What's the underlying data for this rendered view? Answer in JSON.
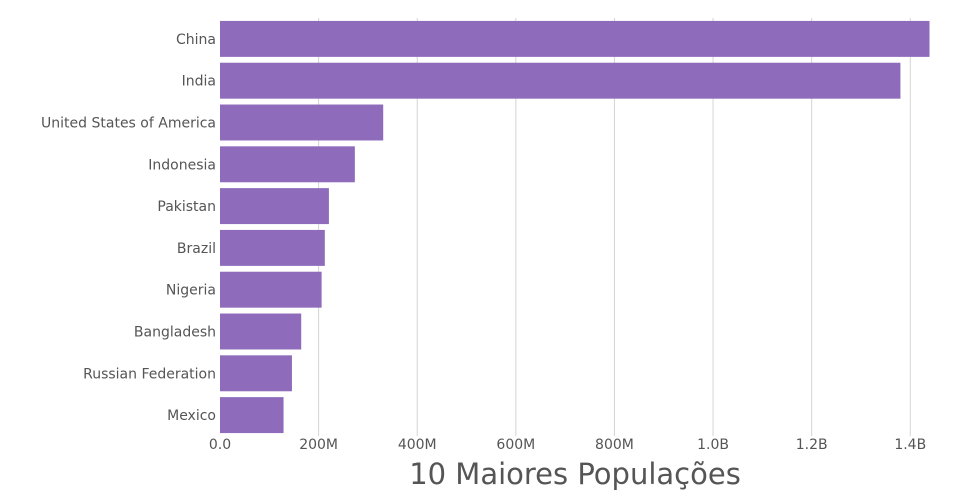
{
  "colors": {
    "bar": "#8e6cbb",
    "grid": "#d4d4d4",
    "text": "#555555"
  },
  "chart_data": {
    "type": "bar",
    "orientation": "horizontal",
    "title": "",
    "xlabel": "10 Maiores Populações",
    "ylabel": "",
    "categories": [
      "China",
      "India",
      "United States of America",
      "Indonesia",
      "Pakistan",
      "Brazil",
      "Nigeria",
      "Bangladesh",
      "Russian Federation",
      "Mexico"
    ],
    "values": [
      1439000000,
      1380000000,
      331000000,
      273500000,
      220900000,
      212600000,
      206100000,
      164700000,
      145900000,
      128900000
    ],
    "xlim": [
      0,
      1440000000
    ],
    "x_ticks": [
      0,
      200000000,
      400000000,
      600000000,
      800000000,
      1000000000,
      1200000000,
      1400000000
    ],
    "x_tick_labels": [
      "0.0",
      "200M",
      "400M",
      "600M",
      "800M",
      "1.0B",
      "1.2B",
      "1.4B"
    ],
    "grid": true,
    "legend": "none"
  }
}
